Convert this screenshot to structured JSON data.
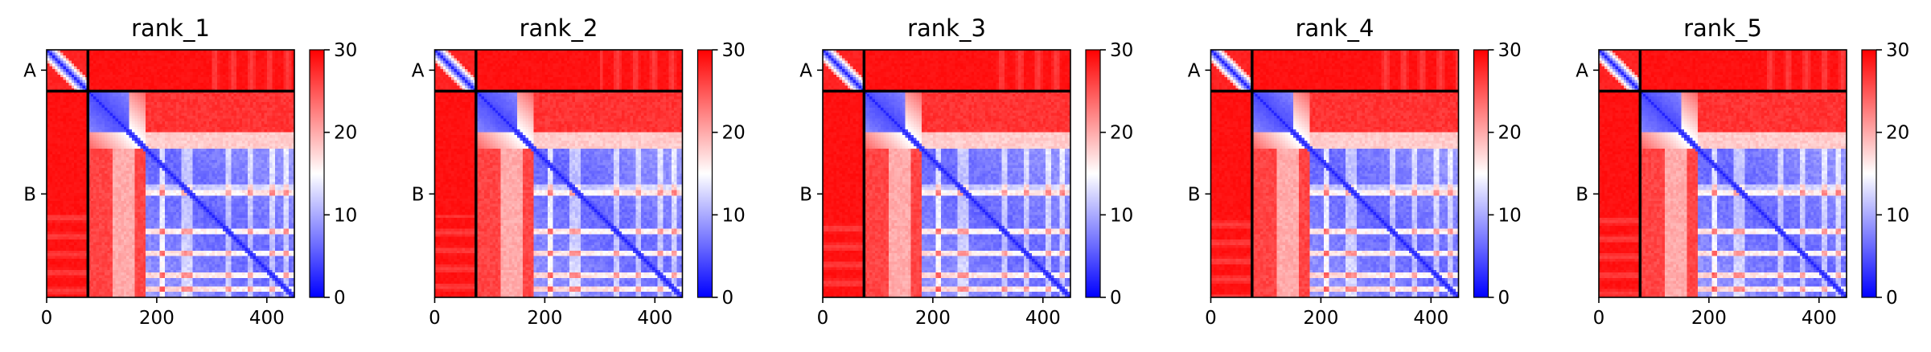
{
  "chart_data": {
    "type": "heatmap",
    "description": "Predicted aligned error (PAE) matrices for five ranked structure models; chain A is residues 0-75, chain B is residues 75-450.",
    "panels": [
      {
        "title": "rank_1"
      },
      {
        "title": "rank_2"
      },
      {
        "title": "rank_3"
      },
      {
        "title": "rank_4"
      },
      {
        "title": "rank_5"
      }
    ],
    "x_ticks": [
      0,
      200,
      400
    ],
    "x_range": [
      0,
      450
    ],
    "y_range": [
      0,
      450
    ],
    "chain_labels": [
      "A",
      "B"
    ],
    "chain_boundary": 75,
    "chain_label_positions": [
      37,
      262
    ],
    "colorbar": {
      "range": [
        0,
        30
      ],
      "ticks": [
        0,
        10,
        20,
        30
      ],
      "colors": [
        "#0000ff",
        "#ffffff",
        "#ff0000"
      ]
    },
    "grid": false,
    "legend": "none"
  }
}
